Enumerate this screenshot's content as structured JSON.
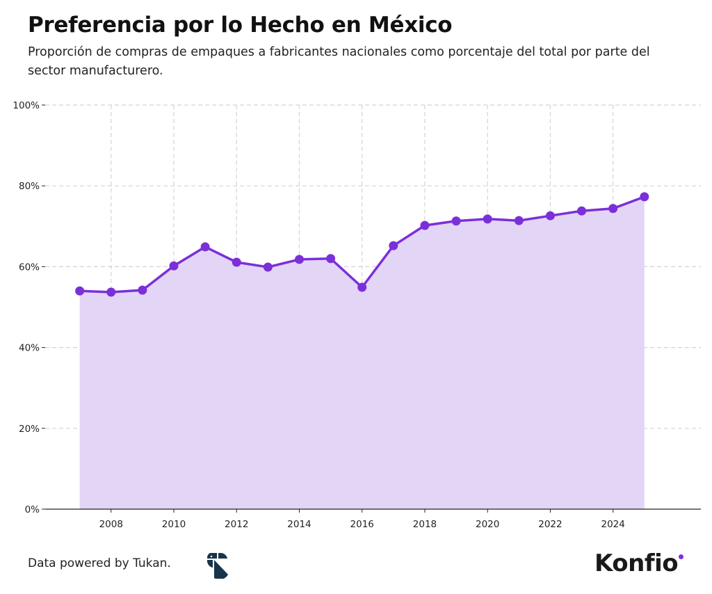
{
  "chart_data": {
    "type": "area",
    "title": "Preferencia por lo Hecho en México",
    "subtitle": "Proporción de compras de empaques a fabricantes nacionales como porcentaje del total por parte del sector manufacturero.",
    "xlabel": "",
    "ylabel": "",
    "x": [
      2007,
      2008,
      2009,
      2010,
      2011,
      2012,
      2013,
      2014,
      2015,
      2016,
      2017,
      2018,
      2019,
      2020,
      2021,
      2022,
      2023,
      2024,
      2025
    ],
    "values": [
      54.0,
      53.7,
      54.2,
      60.2,
      64.9,
      61.1,
      59.9,
      61.8,
      62.0,
      54.9,
      65.2,
      70.2,
      71.3,
      71.8,
      71.4,
      72.6,
      73.8,
      74.4,
      77.3
    ],
    "xlim": [
      2005.9,
      2026.8
    ],
    "ylim": [
      0,
      100
    ],
    "xticks": [
      2008,
      2010,
      2012,
      2014,
      2016,
      2018,
      2020,
      2022,
      2024
    ],
    "yticks": [
      0,
      20,
      40,
      60,
      80,
      100
    ],
    "ytick_labels": [
      "0%",
      "20%",
      "40%",
      "60%",
      "80%",
      "100%"
    ],
    "grid": true,
    "line_color": "#7b2fd9",
    "fill_color": "#e3d5f6"
  },
  "footer": {
    "source": "Data powered by Tukan.",
    "tukan_logo": "Tukan",
    "brand": "Konfio"
  }
}
